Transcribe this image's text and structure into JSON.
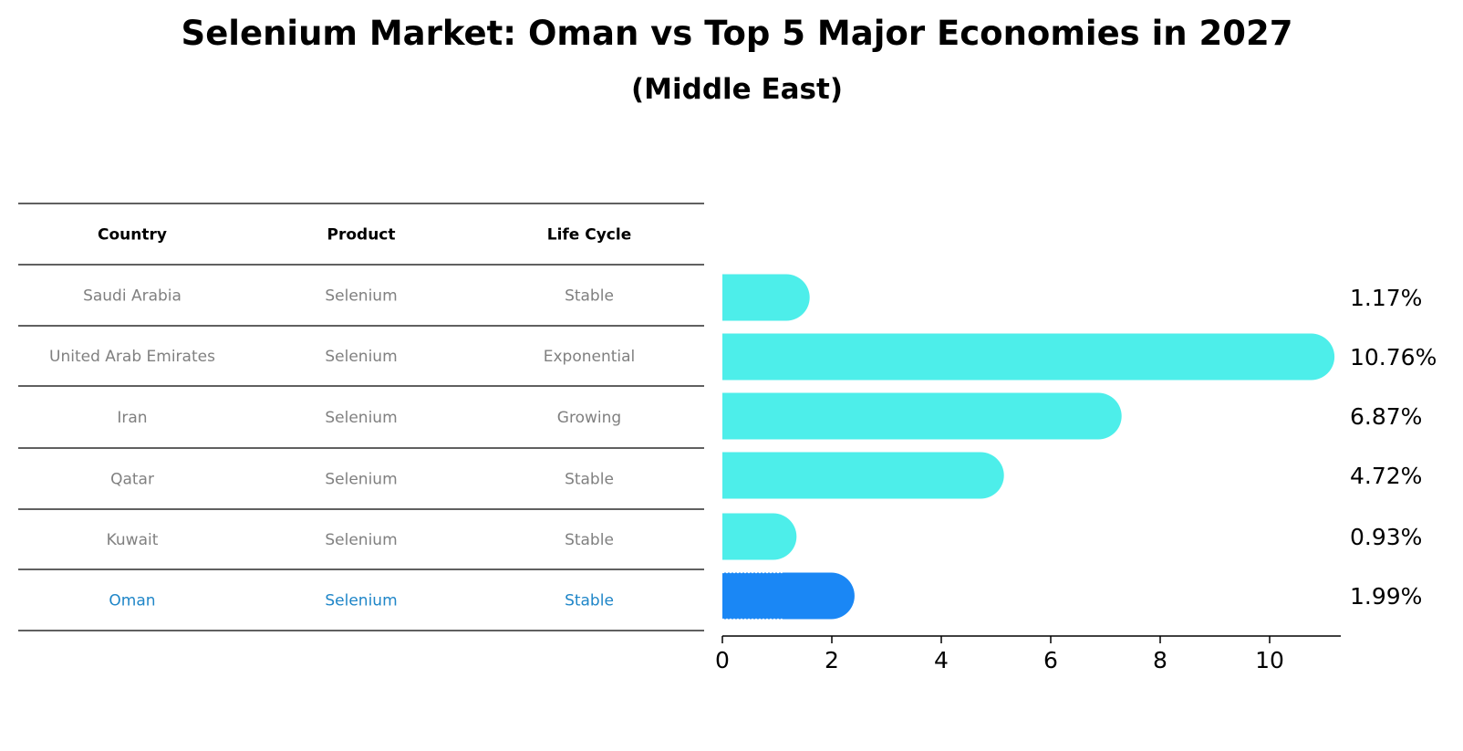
{
  "title": "Selenium Market: Oman vs Top 5 Major Economies in 2027",
  "subtitle": "(Middle East)",
  "colors": {
    "bar": "#4deeea",
    "highlight_bar": "#1a87f5",
    "highlight_text": "#1f86c8",
    "muted_text": "#808080",
    "label_text": "#000000"
  },
  "table": {
    "headers": [
      "Country",
      "Product",
      "Life Cycle"
    ],
    "rows": [
      {
        "country": "Saudi Arabia",
        "product": "Selenium",
        "life_cycle": "Stable",
        "highlight": false
      },
      {
        "country": "United Arab Emirates",
        "product": "Selenium",
        "life_cycle": "Exponential",
        "highlight": false
      },
      {
        "country": "Iran",
        "product": "Selenium",
        "life_cycle": "Growing",
        "highlight": false
      },
      {
        "country": "Qatar",
        "product": "Selenium",
        "life_cycle": "Stable",
        "highlight": false
      },
      {
        "country": "Kuwait",
        "product": "Selenium",
        "life_cycle": "Stable",
        "highlight": false
      },
      {
        "country": "Oman",
        "product": "Selenium",
        "life_cycle": "Stable",
        "highlight": true
      }
    ]
  },
  "chart_data": {
    "type": "bar",
    "orientation": "horizontal",
    "categories": [
      "Saudi Arabia",
      "United Arab Emirates",
      "Iran",
      "Qatar",
      "Kuwait",
      "Oman"
    ],
    "values": [
      1.17,
      10.76,
      6.87,
      4.72,
      0.93,
      1.99
    ],
    "value_labels": [
      "1.17%",
      "10.76%",
      "6.87%",
      "4.72%",
      "0.93%",
      "1.99%"
    ],
    "highlight_category": "Oman",
    "xlim": [
      0,
      11.3
    ],
    "xticks": [
      0,
      2,
      4,
      6,
      8,
      10
    ],
    "xtick_labels": [
      "0",
      "2",
      "4",
      "6",
      "8",
      "10"
    ],
    "grid": false
  }
}
